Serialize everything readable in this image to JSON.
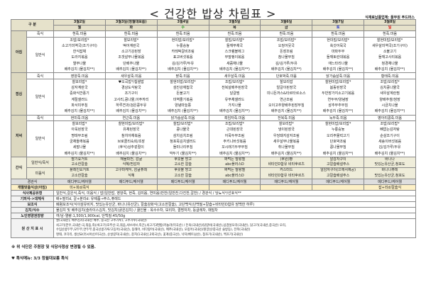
{
  "title": "< 건강한 밥상 차림표 >",
  "supplier": "식재료납품업체: 풀무원 푸드머스",
  "labels": {
    "category": "구 분",
    "breakfast": "아침",
    "lunch": "점심",
    "dinner": "저녁",
    "snack": "간식",
    "porridge": "죽식",
    "general": "일반식",
    "snack_general": "일반식/죽식",
    "snack_liquid": "미음식",
    "tube": "경관식",
    "individual": "개별맞춤식상(아침)",
    "meal_types": "식사제공유형",
    "avoid": "기피식->대체식",
    "supplement": "보조식",
    "kimchi_water": "김치/식수",
    "nutrition": "노인영양권장량",
    "origin": "원 산 지 표 시"
  },
  "day_colors": {
    "wed": "#2a9a2a",
    "sat": "#2233cc",
    "sun": "#dd1111"
  },
  "days": [
    {
      "date": "3월2일",
      "dow": "월",
      "breakfast": {
        "porridge": "흰죽.미음",
        "general": [
          "조밥/보리밥*",
          "소고기미역국(조기구이)",
          "한식잡채",
          "도라지볶음",
          "열무나물",
          "배추김치 (물김치**)"
        ]
      },
      "lunch": {
        "porridge": "영양죽.미음",
        "general": [
          "찰보리밥*",
          "감자계란국",
          "중화식깐풍기",
          "계절샐러드",
          "파서미무침",
          "배추김치 (물김치**)"
        ]
      },
      "dinner": {
        "porridge": "현미죽.미음",
        "general": [
          "찰보리밥*",
          "아욱된장국",
          "명태무조림",
          "궁채들깨볶음",
          "세발나물",
          "배추김치 (물김치**)"
        ]
      },
      "snack": {
        "general": [
          "딸기요거트",
          "고소한칼슘"
        ],
        "liquid": [
          "플레인요거트",
          "고소한칼슘"
        ]
      },
      "tube": "메디푸드/케어웰",
      "individual": "미+희d/죽식"
    },
    {
      "date": "3월3일(정월대보름)",
      "dow": "화",
      "breakfast": {
        "porridge": "흰죽.미음",
        "general": [
          "찰보리밥*",
          "떡어계란국",
          "소고기강된장",
          "조갯살무나물볶음",
          "단배추나물",
          "배추김치 (물김치**)"
        ]
      },
      "lunch": {
        "porridge": "새우살죽.미음",
        "general": [
          "♥오곡밥*/찹쌀밥",
          "경상도식탕국",
          "조기구이",
          "고사리,콩나물,아주까리",
          "하루견과/검은콩두유",
          "배추김치 (물김치**)"
        ]
      },
      "dinner": {
        "porridge": "연근죽.미음",
        "general": [
          "찰현미밥/보리밥*",
          "유채된장국",
          "참치야채볶음",
          "브로콜리숙회/초장",
          "(후식)상추겉절이",
          "배추김치 (물김치**)"
        ]
      },
      "snack": {
        "general": [
          "해물파전, 감귤",
          "식혜/찐감자"
        ],
        "liquid": [
          "고구마케익, 감귤퓨레",
          "식혜"
        ]
      },
      "tube": "메디푸드/케어웰",
      "individual": ""
    },
    {
      "date": "3월4일",
      "dow": "수",
      "breakfast": {
        "porridge": "흰죽.미음",
        "general": [
          "현미밥/보리밥*",
          "누룽숭늉",
          "카레떡갈비조림",
          "표고버섯볶음",
          "김/김가루/두유",
          "배추김치 (물김치**)"
        ]
      },
      "lunch": {
        "porridge": "팥죽.미음",
        "general": [
          "찰현미밥/보리밥*",
          "섬진강재첩국",
          "돈불고기",
          "미역줄기볶음",
          "양념마늘쫑",
          "배추김치 (물김치**)"
        ]
      },
      "dinner": {
        "porridge": "닭가슴살죽.미음",
        "general": [
          "찰밥/보리밥*",
          "콩나물국",
          "삼치김치조림",
          "청포묵김치샐러드",
          "돌미나리무침",
          "깍두기 (물김치**)"
        ]
      },
      "snack": {
        "general": [
          "후룻볼 망고",
          "고소한 칼슘"
        ],
        "liquid": [
          "후룻볼 망고",
          "고소한 칼슘"
        ]
      },
      "tube": "메디푸드/케어웰",
      "individual": ""
    },
    {
      "date": "3월5일",
      "dow": "목",
      "breakfast": {
        "porridge": "흰죽.미음",
        "general": [
          "찰밥/보리밥*",
          "들깨무채국",
          "스크램블에그",
          "무말랭이볶음",
          "새콤채나물",
          "배추김치 (물김치**)"
        ]
      },
      "lunch": {
        "porridge": "새우살죽.미음",
        "general": [
          "조밥/보리밥*",
          "전복살배추된장국",
          "달걀찜",
          "유부채샐러드",
          "가지나물",
          "배추김치 (물김치**)"
        ]
      },
      "dinner": {
        "porridge": "흑임자죽.미음",
        "general": [
          "조밥/보리밥*",
          "근대된장국",
          "어묵두부조림",
          "주키니버섯볶음",
          "꼬시래기두부무침",
          "배추김치 (물김치**)"
        ]
      },
      "snack": {
        "general": [
          "짜먹는 말랑젤",
          "abc플러스D"
        ],
        "liquid": [
          "짜먹는 말랑젤",
          "abc플러스D"
        ]
      },
      "tube": "메디푸드/케어웰",
      "individual": ""
    },
    {
      "date": "3월6일",
      "dow": "금",
      "breakfast": {
        "porridge": "흰죽.미음",
        "general": [
          "조밥/보리밥*",
          "오징어뭇국",
          "돈장조림",
          "참나물무침",
          "김/김가루/두유",
          "배추김치 (물김치**)"
        ]
      },
      "lunch": {
        "porridge": "단호박죽.미음",
        "general": [
          "찰보리밥",
          "얼갈이된장국",
          "미니돈까스&타르타르소스",
          "연근조림",
          "오이고추양배추된장무침",
          "배추김치 (물김치**)"
        ]
      },
      "dinner": {
        "porridge": "전복죽.미음",
        "general": [
          "찰보리밥*",
          "냉이된장국",
          "우엉돼지감자조림",
          "새우살무나물볶음",
          "취나물무침",
          "배추김치 (물김치**)"
        ]
      },
      "snack": {
        "general": [
          "(후원)빵",
          "비타민D함유 비타후르츠"
        ],
        "liquid": [
          "커스터드",
          "비타민D함유 비타후르츠"
        ]
      },
      "tube": "메디푸드/케어웰",
      "individual": ""
    },
    {
      "date": "3월7일",
      "dow": "토",
      "breakfast": {
        "porridge": "흰죽.미음",
        "general": [
          "현미밥/보리밥*",
          "쑥갓어묵국",
          "마파두부",
          "들깨토란대볶음",
          "애느타리나물",
          "배추김치 (물김치**)"
        ]
      },
      "lunch": {
        "porridge": "닭가슴살죽.미음",
        "general": [
          "찰현미밥/보리밥*",
          "봄동된장국",
          "두반장가지소고기볶음",
          "연두부/양념장",
          "삼추부추무침",
          "배추김치 (물김치**)"
        ]
      },
      "dinner": {
        "porridge": "녹두죽.미음",
        "general": [
          "찰현미밥/보리밥*",
          "누룽숭늉",
          "오리주물럭고기",
          "단호박조림",
          "콩나물무침",
          "배추김치 (물김치**)"
        ]
      },
      "snack": {
        "general": [
          "알감자구이",
          "고칼슘배설주스"
        ],
        "liquid": [
          "알감자구이(으깨서제공)",
          "고칼슘배설주스"
        ]
      },
      "tube": "메디푸드/케어웰",
      "individual": ""
    },
    {
      "date": "3월8일",
      "dow": "일",
      "breakfast": {
        "porridge": "흰죽.미음",
        "general": [
          "찰현미밥/보리밥*",
          "새우살미역국(조기구이)",
          "소불고기",
          "들깨고사리볶음",
          "청경채나물",
          "배추김치 (물김치**)"
        ]
      },
      "lunch": {
        "porridge": "황태죽.미음",
        "general": [
          "조밥/보리밥*",
          "김치콩나물국",
          "새우살계란찜",
          "양배추쌈/쌈장",
          "시금치나물",
          "배추김치 (물김치**)"
        ]
      },
      "dinner": {
        "porridge": "병아리콩죽.미음",
        "general": [
          "조밥/보리밥*",
          "뼈없는감자탕",
          "순살조기구이",
          "새송이버섯볶음",
          "김/김가루/두유",
          "배추김치 (물김치**)"
        ]
      },
      "snack": {
        "general": [
          "바나나",
          "맛있는유산균,청포도"
        ],
        "liquid": [
          "바나나퓨레",
          "맛있는유산균,청포도"
        ]
      },
      "tube": "메디푸드/케어웰",
      "individual": "잡+리d/칼슘식"
    }
  ],
  "info": {
    "meal_types": "일반식,갈은식,죽식, 미음식 / 밥(일반밥, 영양죽, 현죽, 김미음, 연미음)반찬(일반찬,다진찬,갈찬) / 경관식 / 당뇨식*/선호식**",
    "avoid": "배+딸리d, 갈+분리d: 유제품→주스,퓨레드",
    "supplement": "폐렴보조식(식이섬유비지, 맛있는유산균, 바나나유산균), 칼슘강화식(고소한칼슘), 고단백식(단백질+칼슘+비타민D함유 담백한 하루)",
    "kimchi_water": "물김치 및 배추김치(슬라이스김치, 맛김치(굵은김치) / 끓인물 : 옥수수차, 보리차, 결명자차, 둥글레차, 매밀차",
    "nutrition": "여/남-열량:1,500/1,900cal, 단백질:45/50g",
    "origin": [
      "쌀(국내산), 배추김치(국내산 배추, 중국산 고추가루), 고추가루(국내산)",
      "쇠고기(한우,국내산:국,볶음,죽)/쇠고기(호주산:국,볶음,샤브샤브,죽간),쇠고기3편밥/카놀라(미국산) / 돈육(국내산)/닭갈비(국내산),삼겹살오리(국내산), 닭고기(국내산,중국산) 오리,",
      "수입산콩두부,모두부,연두부,중국산콩가루/고등어(국내산), 동태어, 비다랑어(국내산), 메추(국내산), 오징어(국내산/원양산/중국산 슬방등), 전복(국내산)",
      "명태, 코다리, 생선묘(러시아산/미국산), 순살갈치(국내산), 갈치(1국내산,2외국산), 꽃게(중국산), 낙지(베트남산), 참조기(국내산), 백조기(국내산)"
    ]
  },
  "notes": {
    "change": "※ 위 식단은 주원장 및 식당사정상 변경될 수 있음.",
    "special": "♥ 특식메뉴: 3/3 정월대보름 특식"
  }
}
